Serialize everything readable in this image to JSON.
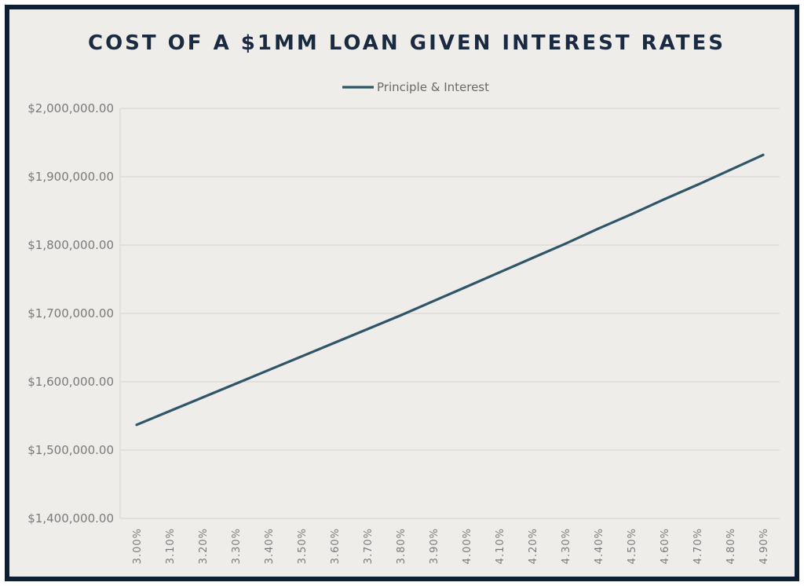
{
  "chart_data": {
    "type": "line",
    "title": "COST OF A $1MM LOAN GIVEN INTEREST RATES",
    "xlabel": "",
    "ylabel": "",
    "legend_position": "top-center",
    "grid": true,
    "ylim": [
      1400000,
      2000000
    ],
    "y_ticks": [
      "$1,400,000.00",
      "$1,500,000.00",
      "$1,600,000.00",
      "$1,700,000.00",
      "$1,800,000.00",
      "$1,900,000.00",
      "$2,000,000.00"
    ],
    "y_tick_values": [
      1400000,
      1500000,
      1600000,
      1700000,
      1800000,
      1900000,
      2000000
    ],
    "categories": [
      "3.00%",
      "3.10%",
      "3.20%",
      "3.30%",
      "3.40%",
      "3.50%",
      "3.60%",
      "3.70%",
      "3.80%",
      "3.90%",
      "4.00%",
      "4.10%",
      "4.20%",
      "4.30%",
      "4.40%",
      "4.50%",
      "4.60%",
      "4.70%",
      "4.80%",
      "4.90%"
    ],
    "series": [
      {
        "name": "Principle & Interest",
        "color": "#2f5568",
        "values": [
          1537000,
          1557000,
          1577000,
          1597000,
          1617000,
          1637000,
          1657000,
          1677000,
          1697000,
          1718000,
          1739000,
          1760000,
          1781000,
          1802000,
          1824000,
          1845000,
          1867000,
          1888000,
          1910000,
          1932000
        ]
      }
    ]
  },
  "colors": {
    "background": "#efedea",
    "frame": "#0f1f33",
    "title": "#1a2a40",
    "grid": "#d9d7d4",
    "line": "#2f5568"
  }
}
